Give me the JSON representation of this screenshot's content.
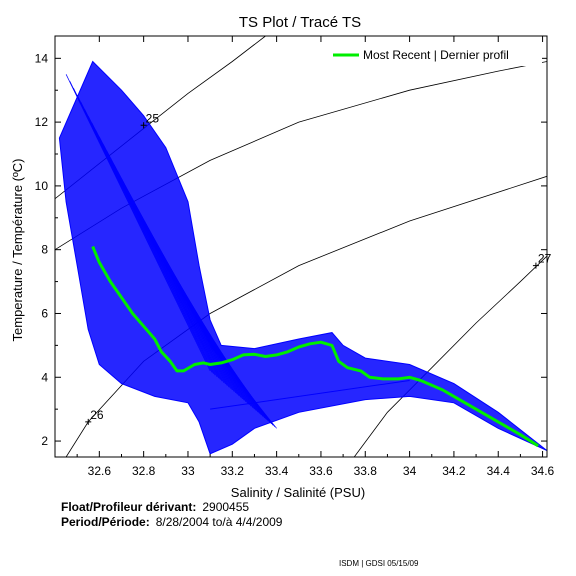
{
  "chart_data": {
    "type": "line",
    "title": "TS Plot / Tracé TS",
    "xlabel": "Salinity / Salinité (PSU)",
    "ylabel": "Temperature / Température (ºC)",
    "xlim": [
      32.4,
      34.62
    ],
    "ylim": [
      1.5,
      14.7
    ],
    "x_ticks": [
      "32.6",
      "32.8",
      "33",
      "33.2",
      "33.4",
      "33.6",
      "33.8",
      "34",
      "34.2",
      "34.4",
      "34.6"
    ],
    "x_tick_values": [
      32.6,
      32.8,
      33.0,
      33.2,
      33.4,
      33.6,
      33.8,
      34.0,
      34.2,
      34.4,
      34.6
    ],
    "y_ticks": [
      "2",
      "4",
      "6",
      "8",
      "10",
      "12",
      "14"
    ],
    "y_tick_values": [
      2,
      4,
      6,
      8,
      10,
      12,
      14
    ],
    "grid": false,
    "legend": {
      "placement": "top-right",
      "entries": [
        "Most Recent | Dernier profil"
      ]
    },
    "series": [
      {
        "name": "Most Recent | Dernier profil",
        "color": "#00ee00",
        "points": [
          [
            32.57,
            8.1
          ],
          [
            32.6,
            7.6
          ],
          [
            32.65,
            7.0
          ],
          [
            32.7,
            6.5
          ],
          [
            32.75,
            6.0
          ],
          [
            32.8,
            5.6
          ],
          [
            32.85,
            5.2
          ],
          [
            32.88,
            4.8
          ],
          [
            32.92,
            4.5
          ],
          [
            32.95,
            4.2
          ],
          [
            32.98,
            4.2
          ],
          [
            33.03,
            4.4
          ],
          [
            33.07,
            4.45
          ],
          [
            33.1,
            4.4
          ],
          [
            33.15,
            4.45
          ],
          [
            33.2,
            4.55
          ],
          [
            33.25,
            4.7
          ],
          [
            33.3,
            4.72
          ],
          [
            33.35,
            4.65
          ],
          [
            33.4,
            4.7
          ],
          [
            33.45,
            4.8
          ],
          [
            33.5,
            4.95
          ],
          [
            33.55,
            5.05
          ],
          [
            33.6,
            5.1
          ],
          [
            33.65,
            5.0
          ],
          [
            33.68,
            4.5
          ],
          [
            33.72,
            4.3
          ],
          [
            33.78,
            4.2
          ],
          [
            33.82,
            4.0
          ],
          [
            33.88,
            3.95
          ],
          [
            33.95,
            3.95
          ],
          [
            34.0,
            4.0
          ],
          [
            34.05,
            3.9
          ],
          [
            34.1,
            3.75
          ],
          [
            34.15,
            3.6
          ],
          [
            34.2,
            3.4
          ],
          [
            34.3,
            3.0
          ],
          [
            34.4,
            2.6
          ],
          [
            34.5,
            2.2
          ],
          [
            34.58,
            1.85
          ]
        ]
      }
    ],
    "history_envelope": {
      "color": "#0000ff",
      "upper": [
        [
          32.57,
          13.9
        ],
        [
          32.7,
          13.0
        ],
        [
          32.8,
          12.2
        ],
        [
          32.9,
          11.2
        ],
        [
          33.0,
          9.5
        ],
        [
          33.05,
          7.5
        ],
        [
          33.1,
          5.8
        ],
        [
          33.15,
          5.0
        ],
        [
          33.3,
          4.9
        ],
        [
          33.5,
          5.2
        ],
        [
          33.65,
          5.4
        ],
        [
          33.7,
          5.0
        ],
        [
          33.8,
          4.6
        ],
        [
          34.0,
          4.4
        ],
        [
          34.2,
          3.8
        ],
        [
          34.4,
          2.9
        ],
        [
          34.62,
          1.7
        ]
      ],
      "lower": [
        [
          34.62,
          1.7
        ],
        [
          34.4,
          2.4
        ],
        [
          34.2,
          3.2
        ],
        [
          34.0,
          3.4
        ],
        [
          33.8,
          3.3
        ],
        [
          33.5,
          2.9
        ],
        [
          33.3,
          2.4
        ],
        [
          33.2,
          1.9
        ],
        [
          33.1,
          1.6
        ],
        [
          33.05,
          2.6
        ],
        [
          33.0,
          3.2
        ],
        [
          32.85,
          3.4
        ],
        [
          32.7,
          3.8
        ],
        [
          32.6,
          4.4
        ],
        [
          32.55,
          5.5
        ],
        [
          32.5,
          7.5
        ],
        [
          32.45,
          9.5
        ],
        [
          32.42,
          11.5
        ]
      ]
    },
    "isopycnals": [
      {
        "label": "25",
        "points": [
          [
            32.4,
            9.6
          ],
          [
            32.6,
            10.7
          ],
          [
            32.8,
            11.8
          ],
          [
            33.0,
            12.9
          ],
          [
            33.2,
            13.9
          ],
          [
            33.35,
            14.7
          ]
        ]
      },
      {
        "label": "",
        "points": [
          [
            32.4,
            8.0
          ],
          [
            32.7,
            9.3
          ],
          [
            33.1,
            10.8
          ],
          [
            33.5,
            12.0
          ],
          [
            34.0,
            13.0
          ],
          [
            34.4,
            13.6
          ],
          [
            34.62,
            13.9
          ]
        ]
      },
      {
        "label": "26",
        "points": [
          [
            32.45,
            1.5
          ],
          [
            32.55,
            2.6
          ],
          [
            32.8,
            4.5
          ],
          [
            33.1,
            6.0
          ],
          [
            33.5,
            7.5
          ],
          [
            34.0,
            8.9
          ],
          [
            34.62,
            10.3
          ]
        ]
      },
      {
        "label": "27",
        "points": [
          [
            33.75,
            1.5
          ],
          [
            33.9,
            2.9
          ],
          [
            34.1,
            4.3
          ],
          [
            34.3,
            5.7
          ],
          [
            34.5,
            7.0
          ],
          [
            34.62,
            7.8
          ]
        ]
      }
    ]
  },
  "float_info": {
    "float_label": "Float/Profileur dérivant:",
    "float_id": "2900455",
    "period_label": "Period/Période:",
    "period_value": "8/28/2004  to/à  4/4/2009"
  },
  "credit": "ISDM | GDSI  05/15/09"
}
